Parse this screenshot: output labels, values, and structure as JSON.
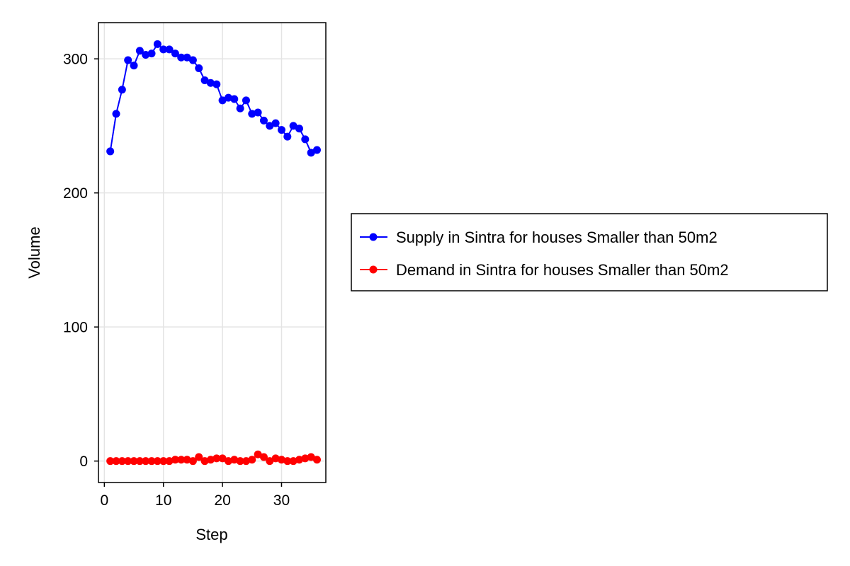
{
  "chart_data": {
    "type": "line",
    "title": "",
    "xlabel": "Step",
    "ylabel": "Volume",
    "xlim": [
      -1,
      37.5
    ],
    "ylim": [
      -16,
      327
    ],
    "xticks": [
      0,
      10,
      20,
      30
    ],
    "yticks": [
      0,
      100,
      200,
      300
    ],
    "grid": true,
    "legend_position": "right",
    "markers": true,
    "x": [
      1,
      2,
      3,
      4,
      5,
      6,
      7,
      8,
      9,
      10,
      11,
      12,
      13,
      14,
      15,
      16,
      17,
      18,
      19,
      20,
      21,
      22,
      23,
      24,
      25,
      26,
      27,
      28,
      29,
      30,
      31,
      32,
      33,
      34,
      35,
      36
    ],
    "series": [
      {
        "name": "Supply in Sintra for houses Smaller than 50m2",
        "color": "#0000ff",
        "values": [
          231,
          259,
          277,
          299,
          295,
          306,
          303,
          304,
          311,
          307,
          307,
          304,
          301,
          301,
          299,
          293,
          284,
          282,
          281,
          269,
          271,
          270,
          263,
          269,
          259,
          260,
          254,
          250,
          252,
          247,
          242,
          250,
          248,
          240,
          230,
          232
        ]
      },
      {
        "name": "Demand in Sintra for houses Smaller than 50m2",
        "color": "#ff0000",
        "values": [
          0,
          0,
          0,
          0,
          0,
          0,
          0,
          0,
          0,
          0,
          0,
          1,
          1,
          1,
          0,
          3,
          0,
          1,
          2,
          2,
          0,
          1,
          0,
          0,
          1,
          5,
          3,
          0,
          2,
          1,
          0,
          0,
          1,
          2,
          3,
          1
        ]
      }
    ]
  }
}
